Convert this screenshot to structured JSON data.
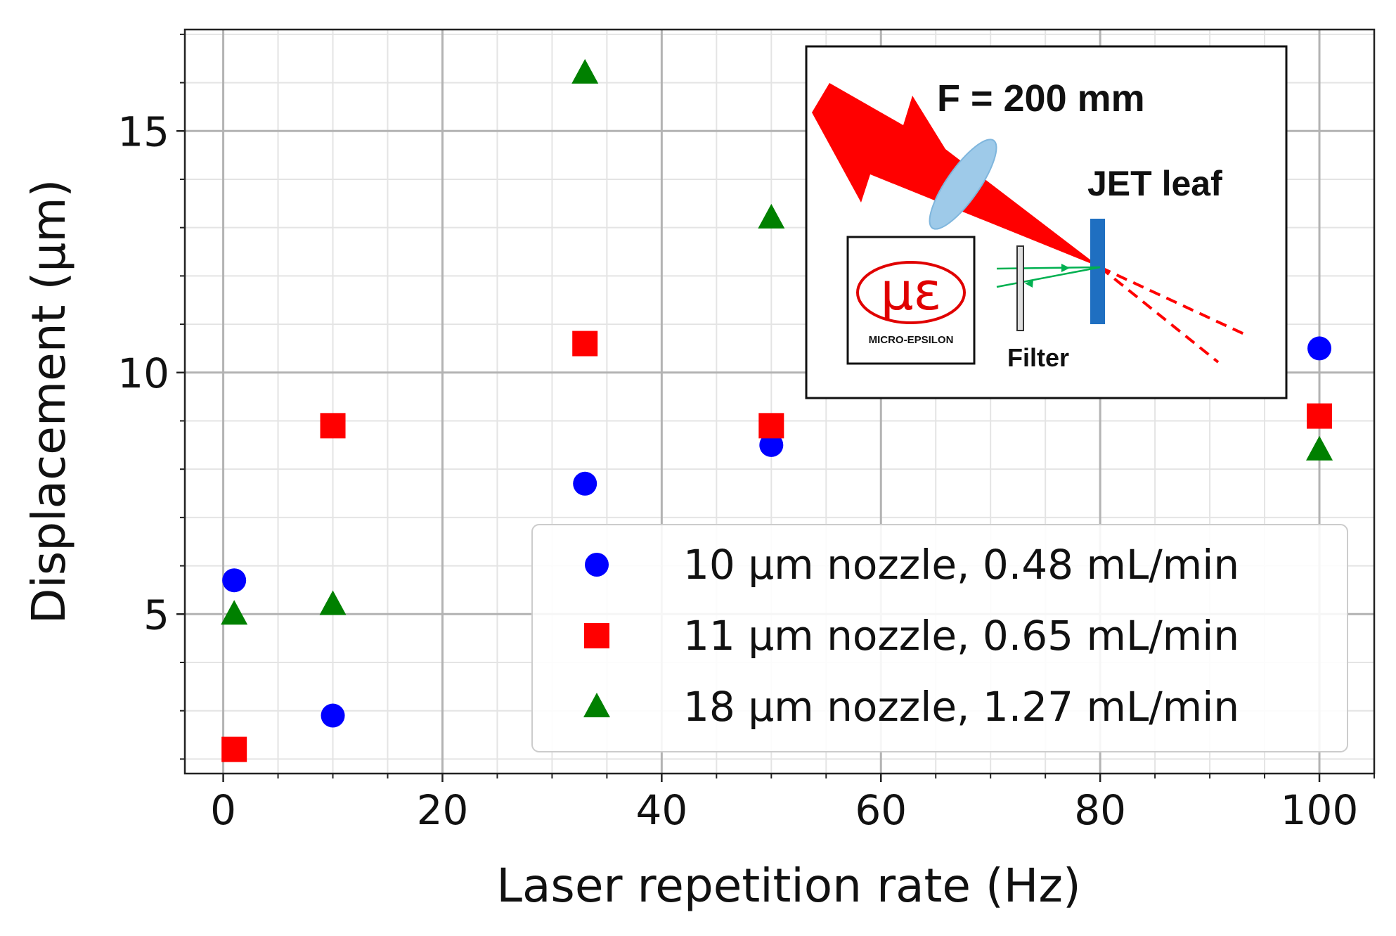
{
  "chart_data": {
    "type": "scatter",
    "xlabel": "Laser repetition rate (Hz)",
    "ylabel": "Displacement (μm)",
    "xlim": [
      -3.5,
      105
    ],
    "ylim": [
      1.7,
      17.1
    ],
    "x_ticks": [
      0,
      20,
      40,
      60,
      80,
      100
    ],
    "y_ticks": [
      5,
      10,
      15
    ],
    "x_minor_step": 5,
    "y_minor_step": 1,
    "grid": true,
    "legend_position": "lower-right",
    "series": [
      {
        "name": "10 μm nozzle, 0.48 mL/min",
        "marker": "circle",
        "color": "#0000ff",
        "points": [
          [
            1,
            5.7
          ],
          [
            10,
            2.9
          ],
          [
            33,
            7.7
          ],
          [
            50,
            8.5
          ],
          [
            100,
            10.5
          ]
        ]
      },
      {
        "name": "11 μm nozzle, 0.65 mL/min",
        "marker": "square",
        "color": "#ff0000",
        "points": [
          [
            1,
            2.2
          ],
          [
            10,
            8.9
          ],
          [
            33,
            10.6
          ],
          [
            50,
            8.9
          ],
          [
            100,
            9.1
          ]
        ]
      },
      {
        "name": "18 μm nozzle, 1.27 mL/min",
        "marker": "triangle",
        "color": "#008000",
        "points": [
          [
            1,
            5.0
          ],
          [
            10,
            5.2
          ],
          [
            33,
            16.2
          ],
          [
            50,
            13.2
          ],
          [
            100,
            8.4
          ]
        ]
      }
    ],
    "inset": {
      "focal_label": "F = 200 mm",
      "target_label": "JET leaf",
      "filter_label": "Filter",
      "sensor_brand": "MICRO-EPSILON",
      "sensor_logo": "με"
    }
  }
}
